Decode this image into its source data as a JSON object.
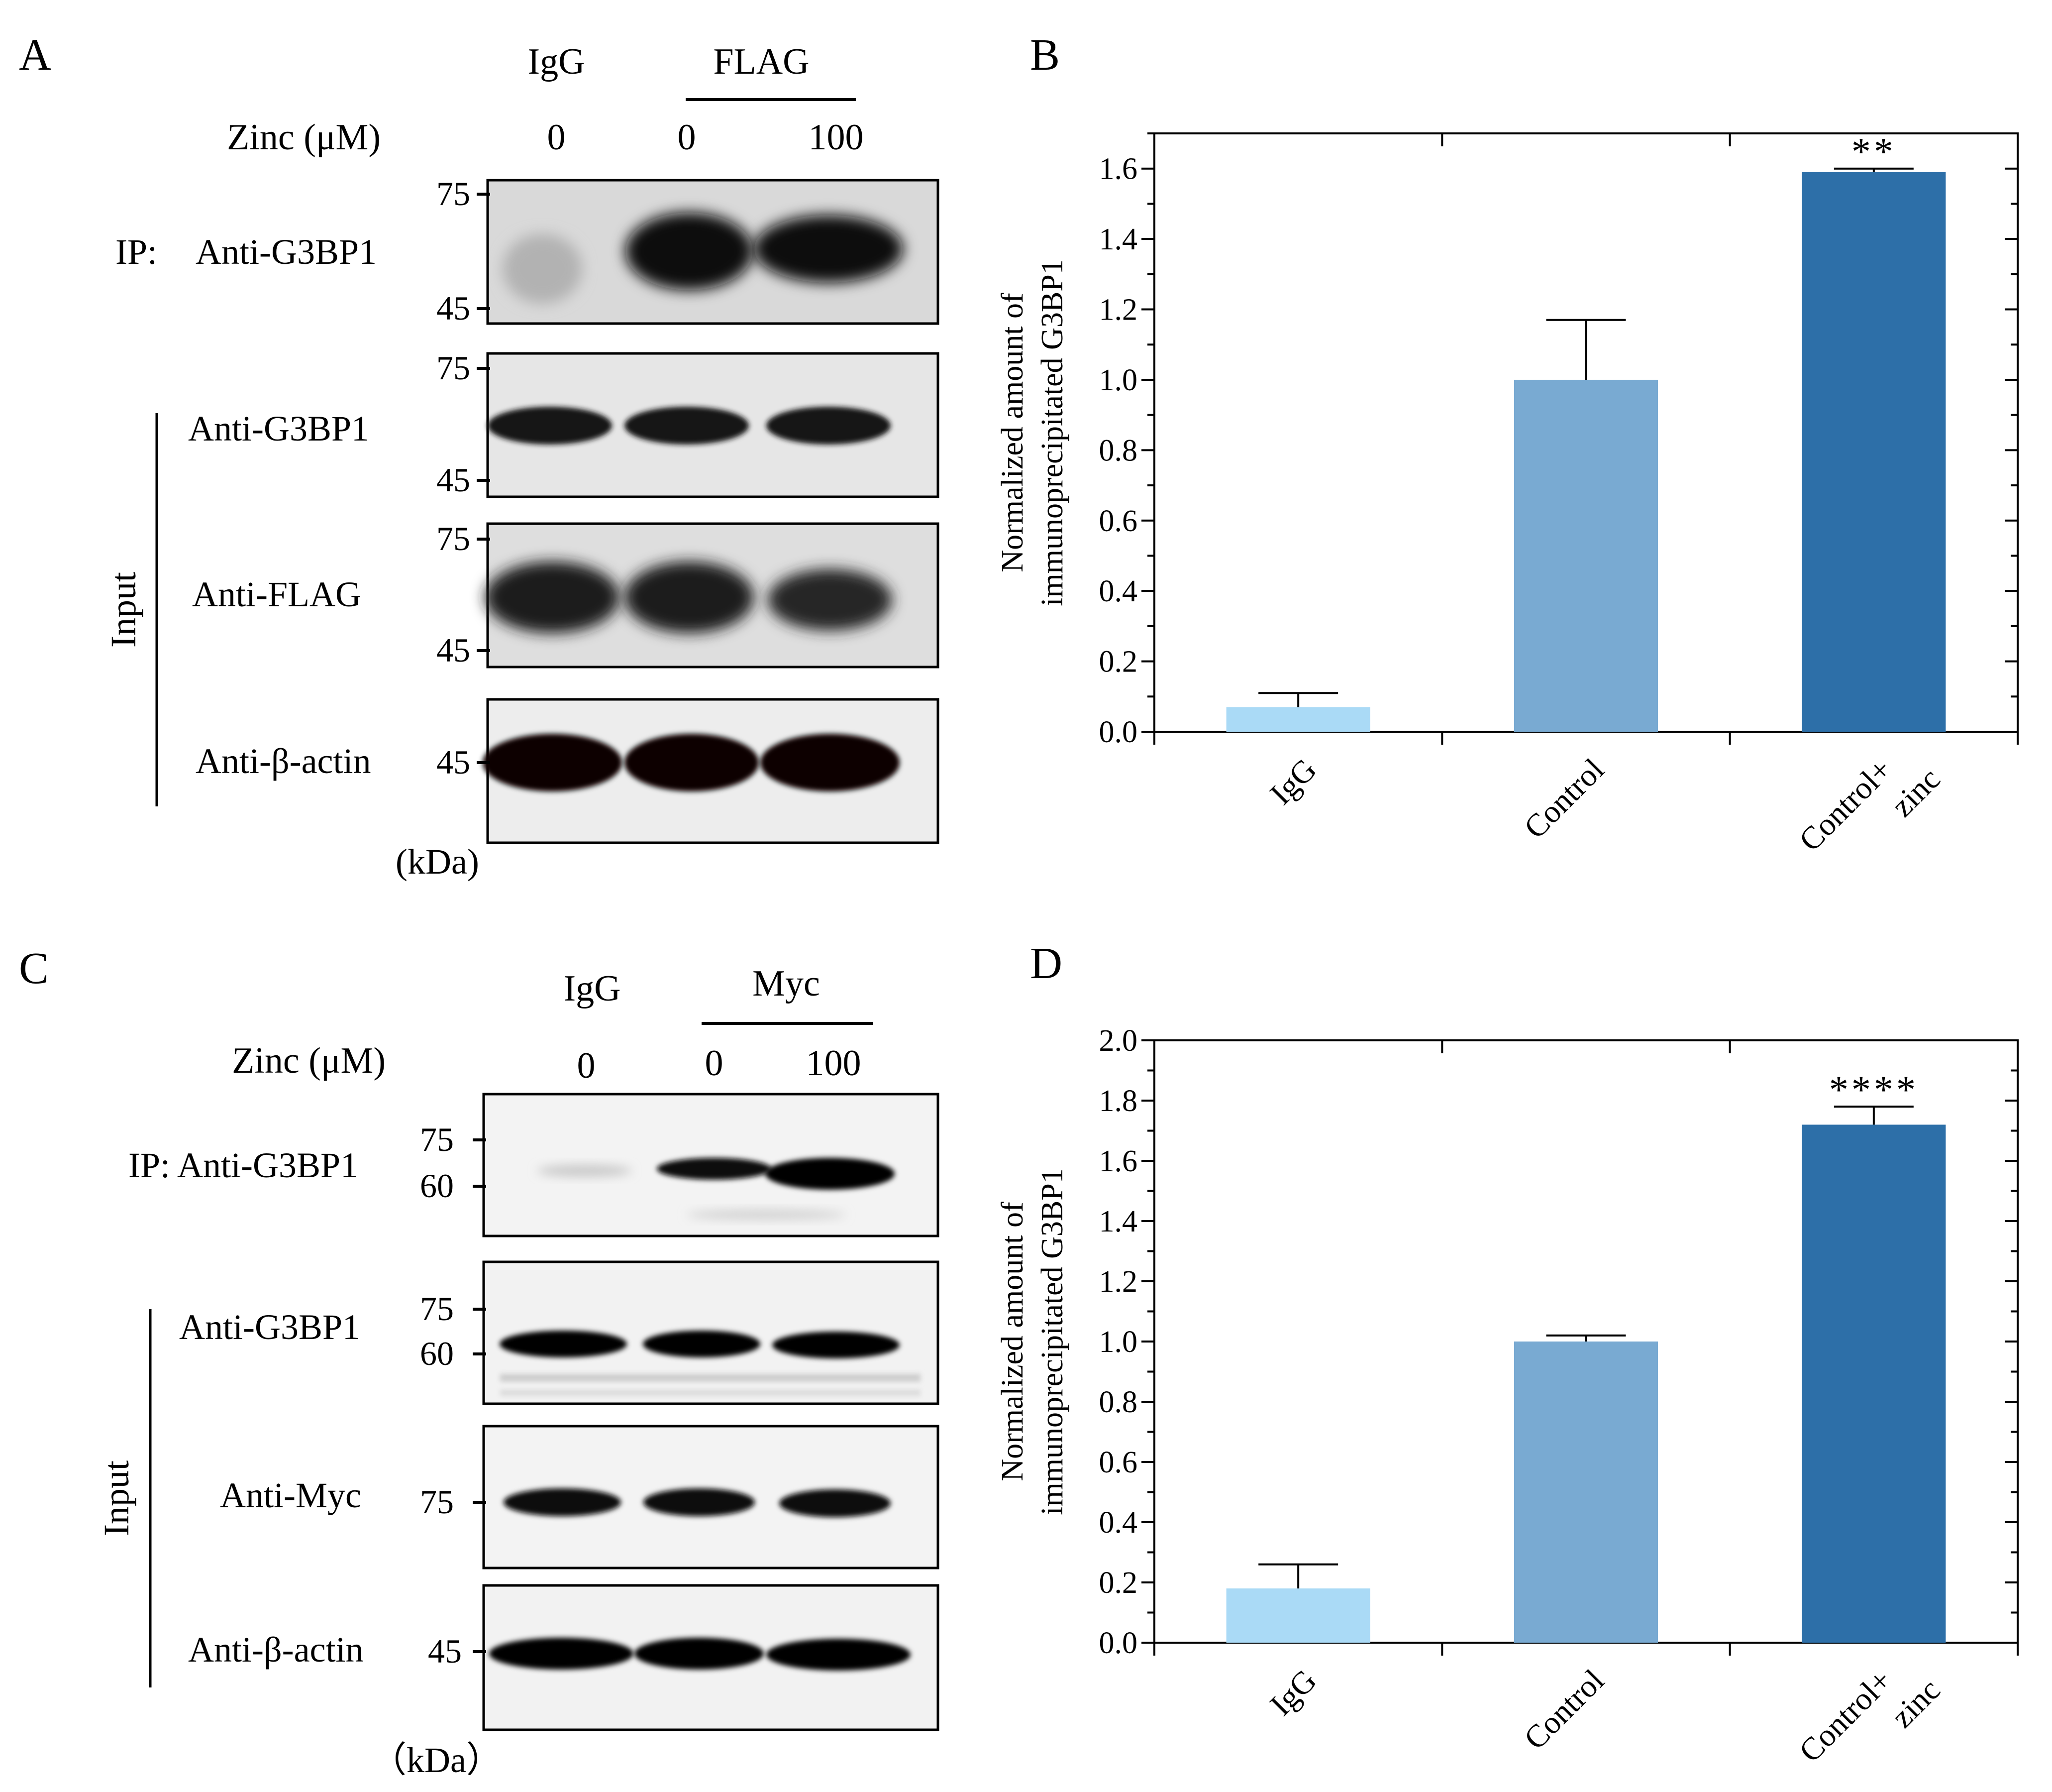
{
  "panels": {
    "A": {
      "label": "A",
      "group_headers": [
        "IgG",
        "FLAG"
      ],
      "row_label": "Zinc (μM)",
      "doses": [
        "0",
        "0",
        "100"
      ],
      "ip_prefix": "IP:",
      "ip_antibody": "Anti-G3BP1",
      "input_label": "Input",
      "input_antibodies": [
        "Anti-G3BP1",
        "Anti-FLAG",
        "Anti-β-actin"
      ],
      "mw_markers": {
        "ip": [
          "75",
          "45"
        ],
        "g3bp1": [
          "75",
          "45"
        ],
        "tag": [
          "75",
          "45"
        ],
        "actin": [
          "45"
        ]
      },
      "unit": "(kDa)"
    },
    "C": {
      "label": "C",
      "group_headers": [
        "IgG",
        "Myc"
      ],
      "row_label": "Zinc (μM)",
      "doses": [
        "0",
        "0",
        "100"
      ],
      "ip_text": "IP: Anti-G3BP1",
      "input_label": "Input",
      "input_antibodies": [
        "Anti-G3BP1",
        "Anti-Myc",
        "Anti-β-actin"
      ],
      "mw_markers": {
        "ip": [
          "75",
          "60"
        ],
        "g3bp1": [
          "75",
          "60"
        ],
        "tag": [
          "75"
        ],
        "actin": [
          "45"
        ]
      },
      "unit": "（kDa）"
    }
  },
  "chart_data": [
    {
      "panel": "B",
      "type": "bar",
      "categories": [
        "IgG",
        "Control",
        "Control+ zinc"
      ],
      "category_lines": [
        [
          "IgG"
        ],
        [
          "Control"
        ],
        [
          "Control+",
          "zinc"
        ]
      ],
      "values": [
        0.07,
        1.0,
        1.59
      ],
      "errors": [
        0.04,
        0.17,
        0.01
      ],
      "significance": [
        "",
        "",
        "**"
      ],
      "ylabel_lines": [
        "Normalized amount of",
        "immunoprecipitated G3BP1"
      ],
      "xlabel": "",
      "ylim": [
        0,
        1.7
      ],
      "yticks": [
        "0.0",
        "0.2",
        "0.4",
        "0.6",
        "0.8",
        "1.0",
        "1.2",
        "1.4",
        "1.6"
      ],
      "colors": [
        "#aadaf6",
        "#79aad2",
        "#2d6fa8"
      ],
      "grid": false
    },
    {
      "panel": "D",
      "type": "bar",
      "categories": [
        "IgG",
        "Control",
        "Control+ zinc"
      ],
      "category_lines": [
        [
          "IgG"
        ],
        [
          "Control"
        ],
        [
          "Control+",
          "zinc"
        ]
      ],
      "values": [
        0.18,
        1.0,
        1.72
      ],
      "errors": [
        0.08,
        0.02,
        0.06
      ],
      "significance": [
        "",
        "",
        "****"
      ],
      "ylabel_lines": [
        "Normalized amount of",
        "immunoprecipitated G3BP1"
      ],
      "xlabel": "",
      "ylim": [
        0,
        2.0
      ],
      "yticks": [
        "0.0",
        "0.2",
        "0.4",
        "0.6",
        "0.8",
        "1.0",
        "1.2",
        "1.4",
        "1.6",
        "1.8",
        "2.0"
      ],
      "colors": [
        "#aadaf6",
        "#79aad2",
        "#2d6fa8"
      ],
      "grid": false
    }
  ]
}
